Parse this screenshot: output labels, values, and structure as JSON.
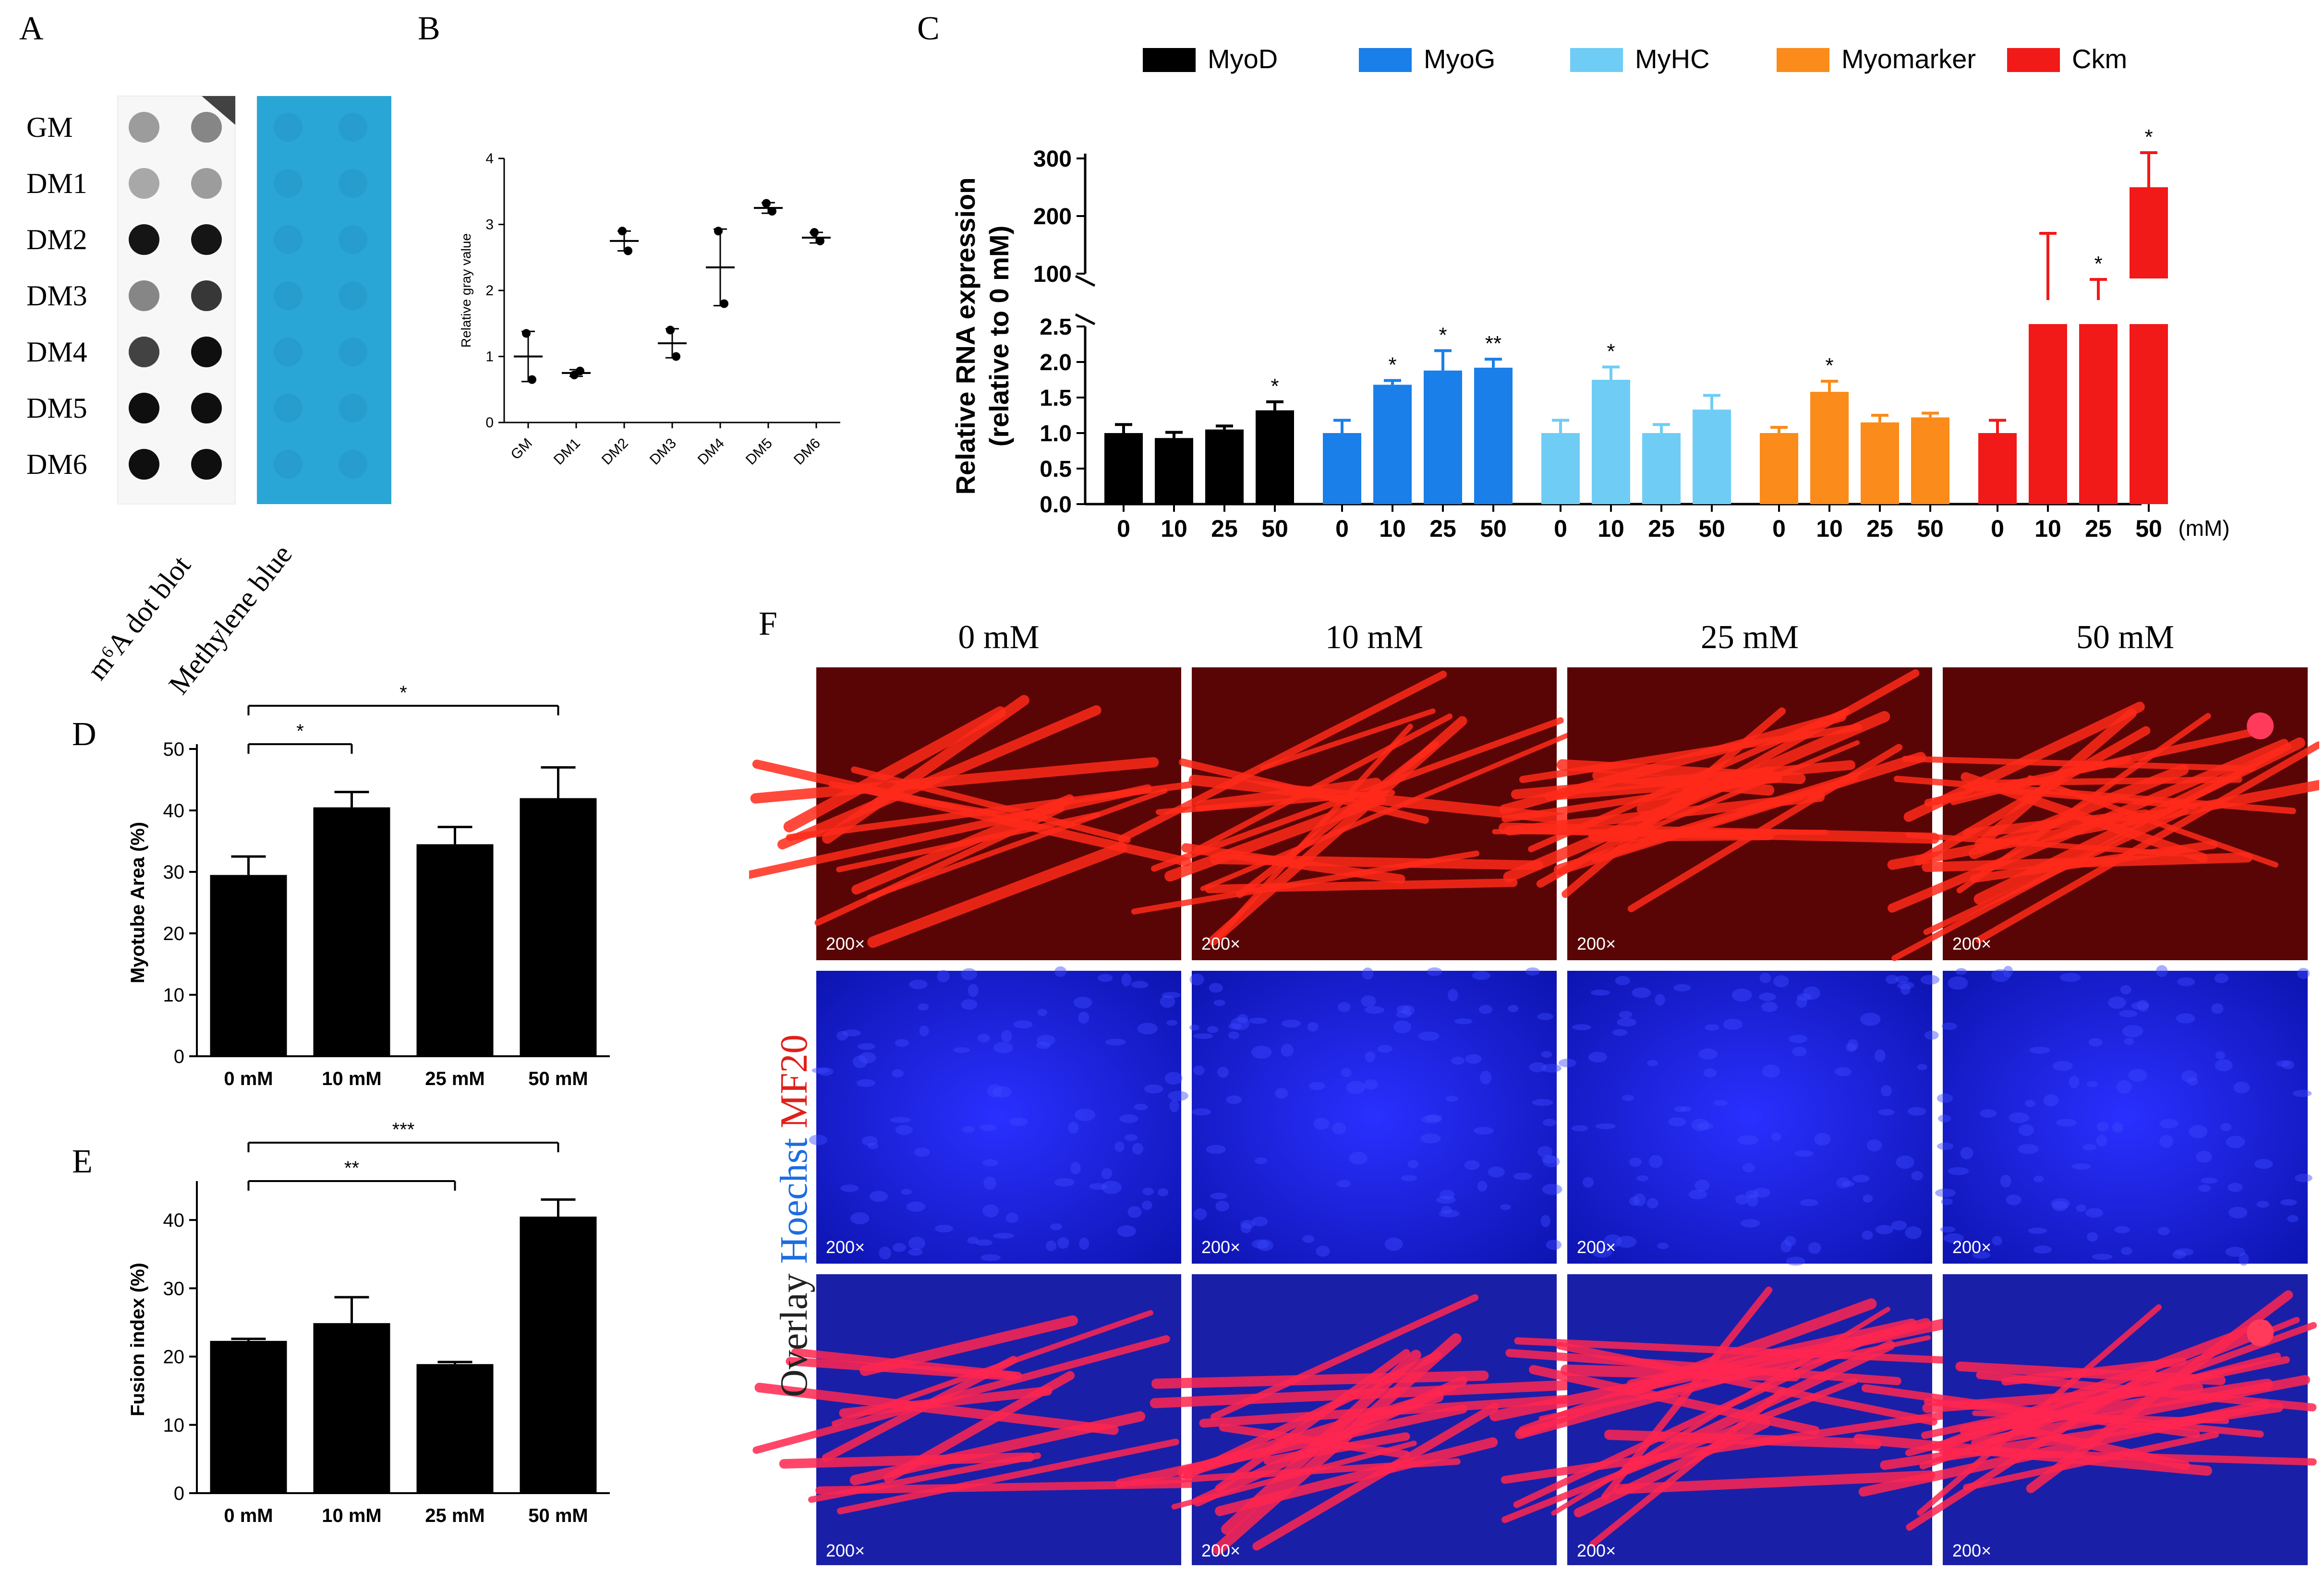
{
  "panel_letters": {
    "a": "A",
    "b": "B",
    "c": "C",
    "d": "D",
    "e": "E",
    "f": "F"
  },
  "colors": {
    "black": "#000000",
    "myog": "#1a7fe8",
    "myhc": "#6fcdf5",
    "myomarker": "#fb8b1a",
    "ckm": "#f21919",
    "mb_blue": "#2aa6d6",
    "mf20": "#e0201a",
    "hoechst": "#1c22e8"
  },
  "panel_a": {
    "row_labels": [
      "GM",
      "DM1",
      "DM2",
      "DM3",
      "DM4",
      "DM5",
      "DM6"
    ],
    "dot_darkness": [
      [
        0.35,
        0.45
      ],
      [
        0.3,
        0.35
      ],
      [
        0.95,
        0.95
      ],
      [
        0.45,
        0.8
      ],
      [
        0.75,
        0.98
      ],
      [
        0.98,
        0.98
      ],
      [
        0.98,
        0.98
      ]
    ],
    "caption_left": "m⁶A dot blot",
    "caption_right": "Methylene blue"
  },
  "chart_data": [
    {
      "id": "B",
      "type": "scatter",
      "ylabel": "Relative gray value",
      "ylim": [
        0,
        4
      ],
      "yticks": [
        "0",
        "1",
        "2",
        "3",
        "4"
      ],
      "categories": [
        "GM",
        "DM1",
        "DM2",
        "DM3",
        "DM4",
        "DM5",
        "DM6"
      ],
      "mean": [
        1.0,
        0.75,
        2.75,
        1.2,
        2.35,
        3.25,
        2.8
      ],
      "err": [
        0.38,
        0.05,
        0.15,
        0.22,
        0.58,
        0.08,
        0.08
      ],
      "points": [
        [
          1.35,
          0.65
        ],
        [
          0.72,
          0.78
        ],
        [
          2.9,
          2.6
        ],
        [
          1.4,
          1.0
        ],
        [
          2.9,
          1.8
        ],
        [
          3.32,
          3.2
        ],
        [
          2.88,
          2.75
        ]
      ]
    },
    {
      "id": "C",
      "type": "bar",
      "ylabel_line1": "Relative RNA expression",
      "ylabel_line2": "(relative to 0 mM)",
      "unit_label": "(mM)",
      "legend": [
        "MyoD",
        "MyoG",
        "MyHC",
        "Myomarker",
        "Ckm"
      ],
      "x": [
        "0",
        "10",
        "25",
        "50"
      ],
      "yticks_low": [
        "0.0",
        "0.5",
        "1.0",
        "1.5",
        "2.0",
        "2.5"
      ],
      "yticks_high": [
        "100",
        "200",
        "300"
      ],
      "series": [
        {
          "name": "MyoD",
          "values": [
            1.0,
            0.93,
            1.05,
            1.32
          ],
          "err": [
            0.12,
            0.08,
            0.05,
            0.12
          ],
          "sig": [
            "",
            "",
            "",
            "*"
          ]
        },
        {
          "name": "MyoG",
          "values": [
            1.0,
            1.68,
            1.88,
            1.92
          ],
          "err": [
            0.18,
            0.06,
            0.28,
            0.12
          ],
          "sig": [
            "",
            "*",
            "*",
            "**"
          ]
        },
        {
          "name": "MyHC",
          "values": [
            1.0,
            1.75,
            1.0,
            1.33
          ],
          "err": [
            0.18,
            0.18,
            0.12,
            0.2
          ],
          "sig": [
            "",
            "*",
            "",
            ""
          ]
        },
        {
          "name": "Myomarker",
          "values": [
            1.0,
            1.58,
            1.15,
            1.22
          ],
          "err": [
            0.08,
            0.15,
            0.1,
            0.06
          ],
          "sig": [
            "",
            "*",
            "",
            ""
          ]
        },
        {
          "name": "Ckm",
          "values": [
            1.0,
            85,
            75,
            250
          ],
          "err": [
            0.18,
            85,
            15,
            60
          ],
          "sig": [
            "",
            "",
            "*",
            "*"
          ]
        }
      ]
    },
    {
      "id": "D",
      "type": "bar",
      "ylabel": "Myotube Area (%)",
      "ylim": [
        0,
        50
      ],
      "yticks": [
        "0",
        "10",
        "20",
        "30",
        "40",
        "50"
      ],
      "categories": [
        "0 mM",
        "10 mM",
        "25 mM",
        "50 mM"
      ],
      "values": [
        29.5,
        40.5,
        34.5,
        42
      ],
      "err": [
        3,
        2.5,
        2.8,
        5
      ],
      "sig_brackets": [
        {
          "from": 0,
          "to": 1,
          "label": "*"
        },
        {
          "from": 0,
          "to": 3,
          "label": "*"
        }
      ]
    },
    {
      "id": "E",
      "type": "bar",
      "ylabel": "Fusion index (%)",
      "ylim": [
        0,
        45
      ],
      "yticks": [
        "0",
        "10",
        "20",
        "30",
        "40"
      ],
      "categories": [
        "0 mM",
        "10 mM",
        "25 mM",
        "50 mM"
      ],
      "values": [
        22.3,
        24.9,
        18.9,
        40.5
      ],
      "err": [
        0.3,
        3.8,
        0.3,
        2.5
      ],
      "sig_brackets": [
        {
          "from": 0,
          "to": 2,
          "label": "**"
        },
        {
          "from": 0,
          "to": 3,
          "label": "***"
        }
      ]
    }
  ],
  "panel_f": {
    "column_labels": [
      "0 mM",
      "10 mM",
      "25 mM",
      "50 mM"
    ],
    "side_label": {
      "overlay": "Overlay ",
      "hoechst": "Hoechst ",
      "mf20": "MF20"
    },
    "magnification": "200×"
  }
}
